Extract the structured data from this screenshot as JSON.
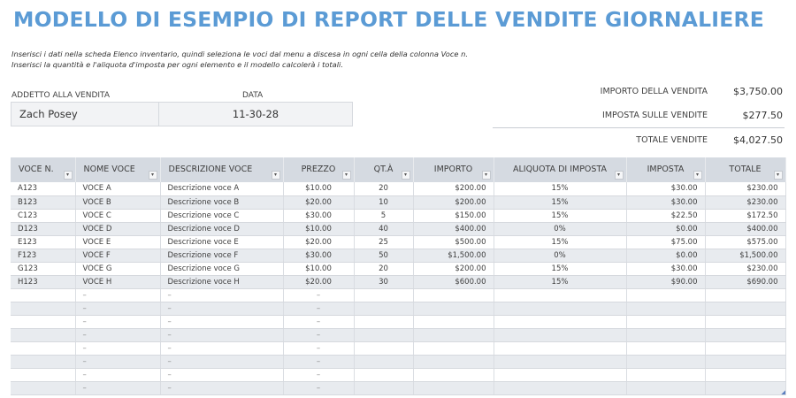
{
  "title": "MODELLO DI ESEMPIO DI REPORT DELLE VENDITE GIORNALIERE",
  "instructions": [
    "Inserisci i dati nella scheda Elenco inventario, quindi seleziona le voci dal menu a discesa in ogni cella della colonna Voce n.",
    "Inserisci la quantità e l'aliquota d'imposta per ogni elemento e il modello calcolerà i totali."
  ],
  "info": {
    "seller_label": "ADDETTO ALLA VENDITA",
    "date_label": "DATA",
    "seller": "Zach Posey",
    "date": "11-30-28"
  },
  "summary": {
    "sales_amount_label": "IMPORTO DELLA VENDITA",
    "sales_amount": "$3,750.00",
    "sales_tax_label": "IMPOSTA SULLE VENDITE",
    "sales_tax": "$277.50",
    "total_label": "TOTALE VENDITE",
    "total": "$4,027.50"
  },
  "table": {
    "headers": [
      "VOCE N.",
      "NOME VOCE",
      "DESCRIZIONE VOCE",
      "PREZZO",
      "QT.À",
      "IMPORTO",
      "ALIQUOTA DI IMPOSTA",
      "IMPOSTA",
      "TOTALE"
    ],
    "filter_glyph": "▾",
    "rows": [
      [
        "A123",
        "VOCE A",
        "Descrizione voce A",
        "$10.00",
        "20",
        "$200.00",
        "15%",
        "$30.00",
        "$230.00"
      ],
      [
        "B123",
        "VOCE B",
        "Descrizione voce B",
        "$20.00",
        "10",
        "$200.00",
        "15%",
        "$30.00",
        "$230.00"
      ],
      [
        "C123",
        "VOCE C",
        "Descrizione voce C",
        "$30.00",
        "5",
        "$150.00",
        "15%",
        "$22.50",
        "$172.50"
      ],
      [
        "D123",
        "VOCE D",
        "Descrizione voce D",
        "$10.00",
        "40",
        "$400.00",
        "0%",
        "$0.00",
        "$400.00"
      ],
      [
        "E123",
        "VOCE E",
        "Descrizione voce E",
        "$20.00",
        "25",
        "$500.00",
        "15%",
        "$75.00",
        "$575.00"
      ],
      [
        "F123",
        "VOCE F",
        "Descrizione voce F",
        "$30.00",
        "50",
        "$1,500.00",
        "0%",
        "$0.00",
        "$1,500.00"
      ],
      [
        "G123",
        "VOCE G",
        "Descrizione voce G",
        "$10.00",
        "20",
        "$200.00",
        "15%",
        "$30.00",
        "$230.00"
      ],
      [
        "H123",
        "VOCE H",
        "Descrizione voce H",
        "$20.00",
        "30",
        "$600.00",
        "15%",
        "$90.00",
        "$690.00"
      ],
      [
        "",
        "–",
        "–",
        "–",
        "",
        "",
        "",
        "",
        ""
      ],
      [
        "",
        "–",
        "–",
        "–",
        "",
        "",
        "",
        "",
        ""
      ],
      [
        "",
        "–",
        "–",
        "–",
        "",
        "",
        "",
        "",
        ""
      ],
      [
        "",
        "–",
        "–",
        "–",
        "",
        "",
        "",
        "",
        ""
      ],
      [
        "",
        "–",
        "–",
        "–",
        "",
        "",
        "",
        "",
        ""
      ],
      [
        "",
        "–",
        "–",
        "–",
        "",
        "",
        "",
        "",
        ""
      ],
      [
        "",
        "–",
        "–",
        "–",
        "",
        "",
        "",
        "",
        ""
      ],
      [
        "",
        "–",
        "–",
        "–",
        "",
        "",
        "",
        "",
        ""
      ]
    ]
  }
}
